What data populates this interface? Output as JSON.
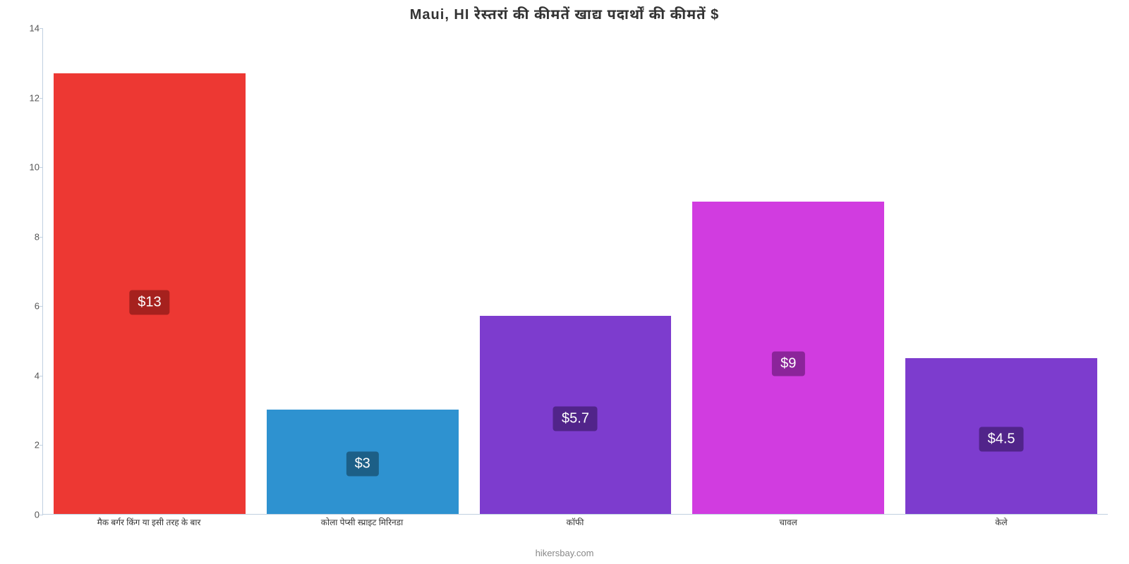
{
  "chart": {
    "type": "bar",
    "title": "Maui, HI रेस्तरां   की   कीमतें   खाद्य   पदार्थों   की   कीमतें   $",
    "title_fontsize": 20,
    "background_color": "#ffffff",
    "axis_color": "#c0d0e0",
    "ylim": [
      0,
      14
    ],
    "ytick_step": 2,
    "yticks": [
      0,
      2,
      4,
      6,
      8,
      10,
      12,
      14
    ],
    "bar_width_pct": 90,
    "categories": [
      "मैक बर्गर किंग या इसी तरह के बार",
      "कोला पेप्सी स्प्राइट मिरिनडा",
      "कॉफी",
      "चावल",
      "केले"
    ],
    "values": [
      12.7,
      3.0,
      5.7,
      9.0,
      4.5
    ],
    "value_labels": [
      "$13",
      "$3",
      "$5.7",
      "$9",
      "$4.5"
    ],
    "bar_colors": [
      "#ed3833",
      "#2e92d0",
      "#7d3cce",
      "#d13ce0",
      "#7d3cce"
    ],
    "label_box_colors": [
      "#a6211e",
      "#1c5f87",
      "#51248a",
      "#8b249a",
      "#51248a"
    ],
    "label_fontsize": 20,
    "xlabel_fontsize": 12
  },
  "attribution": "hikersbay.com"
}
